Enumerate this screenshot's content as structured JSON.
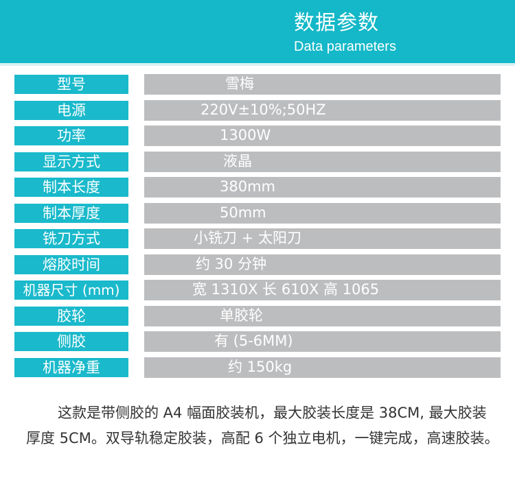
{
  "header": {
    "title_cn": "数据参数",
    "title_en": "Data parameters"
  },
  "specs": [
    {
      "label": "型号",
      "value": "雪梅"
    },
    {
      "label": "电源",
      "value": "220V±10%;50HZ"
    },
    {
      "label": "功率",
      "value": "1300W"
    },
    {
      "label": "显示方式",
      "value": "液晶"
    },
    {
      "label": "制本长度",
      "value": "380mm"
    },
    {
      "label": "制本厚度",
      "value": "50mm"
    },
    {
      "label": "铣刀方式",
      "value": "小铣刀 + 太阳刀"
    },
    {
      "label": "熔胶时间",
      "value": "约 30 分钟"
    },
    {
      "label": "机器尺寸 (mm)",
      "value": "宽 1310X 长 610X 高 1065"
    },
    {
      "label": "胶轮",
      "value": "单胶轮"
    },
    {
      "label": "侧胶",
      "value": "有 (5-6MM)"
    },
    {
      "label": "机器净重",
      "value": "约 150kg"
    }
  ],
  "description": "这款是带侧胶的 A4 幅面胶装机，最大胶装长度是 38CM, 最大胶装厚度 5CM。双导轨稳定胶装，高配 6 个独立电机，一键完成，高速胶装。",
  "colors": {
    "banner": "#14b8c8",
    "label_bg": "#1ab9cb",
    "value_bg": "#bcbdbf"
  }
}
